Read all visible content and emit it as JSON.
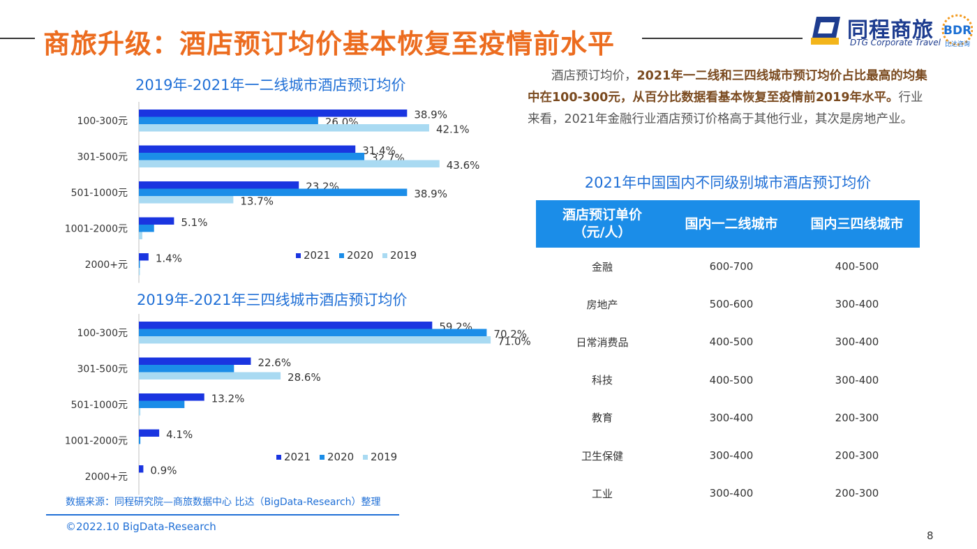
{
  "header": {
    "title": "商旅升级：酒店预订均价基本恢复至疫情前水平"
  },
  "logo": {
    "name_cn": "同程商旅",
    "name_en": "DTG Corporate Travel",
    "badge": "BDR",
    "badge_sub": "比达咨询"
  },
  "chart_data": [
    {
      "type": "bar",
      "orientation": "horizontal",
      "title": "2019年-2021年一二线城市酒店预订均价",
      "categories": [
        "100-300元",
        "301-500元",
        "501-1000元",
        "1001-2000元",
        "2000+元"
      ],
      "series": [
        {
          "name": "2021",
          "color": "#1a35e0",
          "values": [
            38.9,
            31.4,
            23.2,
            5.1,
            1.4
          ]
        },
        {
          "name": "2020",
          "color": "#1b8de8",
          "values": [
            26.0,
            32.7,
            38.9,
            2.2,
            0.1
          ]
        },
        {
          "name": "2019",
          "color": "#a9daf2",
          "values": [
            42.1,
            43.6,
            13.7,
            0.5,
            0.1
          ]
        }
      ],
      "labels": [
        [
          "38.9%",
          "26.0%",
          "42.1%"
        ],
        [
          "31.4%",
          "32.7%",
          "43.6%"
        ],
        [
          "23.2%",
          "38.9%",
          "13.7%"
        ],
        [
          "5.1%",
          null,
          null
        ],
        [
          "1.4%",
          null,
          null
        ]
      ],
      "xlim": [
        0,
        50
      ],
      "legend_position": "bottom-right"
    },
    {
      "type": "bar",
      "orientation": "horizontal",
      "title": "2019年-2021年三四线城市酒店预订均价",
      "categories": [
        "100-300元",
        "301-500元",
        "501-1000元",
        "1001-2000元",
        "2000+元"
      ],
      "series": [
        {
          "name": "2021",
          "color": "#1a35e0",
          "values": [
            59.2,
            22.6,
            13.2,
            4.1,
            0.9
          ]
        },
        {
          "name": "2020",
          "color": "#1b8de8",
          "values": [
            70.2,
            19.2,
            9.2,
            0.3,
            0.0
          ]
        },
        {
          "name": "2019",
          "color": "#a9daf2",
          "values": [
            71.0,
            28.6,
            0.3,
            0.0,
            0.0
          ]
        }
      ],
      "labels": [
        [
          "59.2%",
          "70.2%",
          "71.0%"
        ],
        [
          "22.6%",
          null,
          "28.6%"
        ],
        [
          "13.2%",
          null,
          null
        ],
        [
          "4.1%",
          null,
          null
        ],
        [
          "0.9%",
          null,
          null
        ]
      ],
      "xlim": [
        0,
        80
      ],
      "legend_position": "bottom-right"
    }
  ],
  "summary": {
    "p1": "酒店预订均价，",
    "b1": "2021年一二线和三四线城市预订均价占比最高的均集中在100-300元，从百分比数据看基本恢复至疫情前2019年水平。",
    "p2": "行业来看，2021年金融行业酒店预订价格高于其他行业，其次是房地产业。"
  },
  "table": {
    "title": "2021年中国国内不同级别城市酒店预订均价",
    "headers": [
      "酒店预订单价\n（元/人）",
      "国内一二线城市",
      "国内三四线城市"
    ],
    "rows": [
      [
        "金融",
        "600-700",
        "400-500"
      ],
      [
        "房地产",
        "500-600",
        "300-400"
      ],
      [
        "日常消费品",
        "400-500",
        "300-400"
      ],
      [
        "科技",
        "400-500",
        "300-400"
      ],
      [
        "教育",
        "300-400",
        "200-300"
      ],
      [
        "卫生保健",
        "300-400",
        "200-300"
      ],
      [
        "工业",
        "300-400",
        "200-300"
      ]
    ]
  },
  "footer": {
    "source": "数据来源：同程研究院—商旅数据中心 比达（BigData-Research）整理",
    "copyright": "©2022.10 BigData-Research",
    "page": "8"
  },
  "colors": {
    "title": "#ec6c1f",
    "accent": "#1f6fd6",
    "table_header": "#1b8de8"
  }
}
